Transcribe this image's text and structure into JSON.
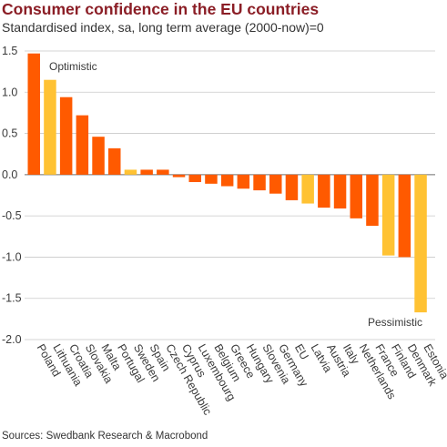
{
  "chart_data": {
    "type": "bar",
    "title": "Consumer confidence in the EU countries",
    "subtitle": "Standardised index, sa, long term average (2000-now)=0",
    "categories": [
      "Poland",
      "Lithuania",
      "Croatia",
      "Slovakia",
      "Malta",
      "Portugal",
      "Sweden",
      "Spain",
      "Czech Republic",
      "Cyprus",
      "Luxembourg",
      "Belgium",
      "Greece",
      "Hungary",
      "Slovenia",
      "Germany",
      "EU",
      "Latvia",
      "Austria",
      "Italy",
      "Netherlands",
      "France",
      "Finland",
      "Denmark",
      "Estonia"
    ],
    "values": [
      1.47,
      1.15,
      0.94,
      0.72,
      0.46,
      0.32,
      0.06,
      0.06,
      0.06,
      -0.03,
      -0.09,
      -0.11,
      -0.14,
      -0.17,
      -0.19,
      -0.23,
      -0.31,
      -0.35,
      -0.4,
      -0.41,
      -0.53,
      -0.62,
      -0.98,
      -1.0,
      -1.67
    ],
    "colors": [
      "#ff5a00",
      "#ffc233",
      "#ff5a00",
      "#ff5a00",
      "#ff5a00",
      "#ff5a00",
      "#ffc233",
      "#ff5a00",
      "#ff5a00",
      "#ff5a00",
      "#ff5a00",
      "#ff5a00",
      "#ff5a00",
      "#ff5a00",
      "#ff5a00",
      "#ff5a00",
      "#ff5a00",
      "#ffc233",
      "#ff5a00",
      "#ff5a00",
      "#ff5a00",
      "#ff5a00",
      "#ffc233",
      "#ff5a00",
      "#ffc233"
    ],
    "ylim": [
      -2.0,
      1.5
    ],
    "yticks": [
      "1.5",
      "1.0",
      "0.5",
      "0.0",
      "-0.5",
      "-1.0",
      "-1.5",
      "-2.0"
    ],
    "grid": true,
    "annotations": [
      "Optimistic",
      "Pessimistic"
    ],
    "source": "Sources: Swedbank Research & Macrobond"
  }
}
